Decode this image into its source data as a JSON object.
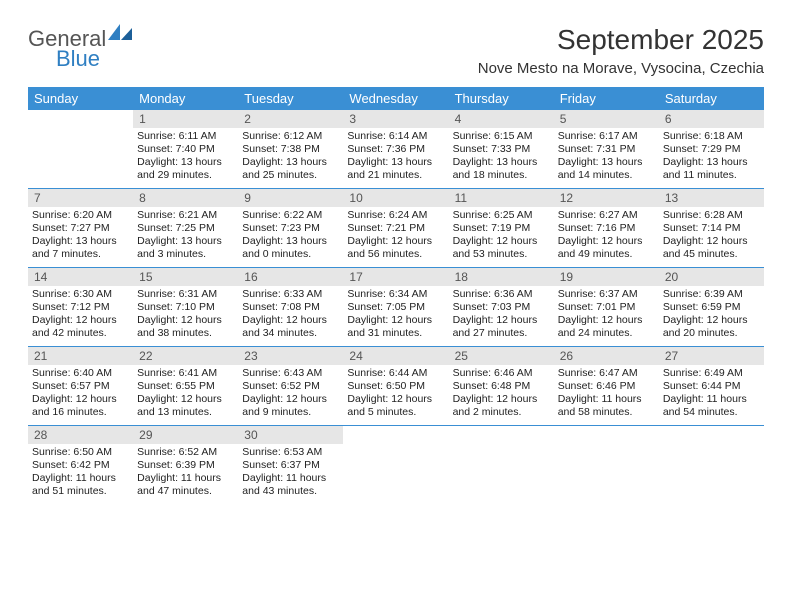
{
  "logo": {
    "text1": "General",
    "text2": "Blue"
  },
  "title": "September 2025",
  "location": "Nove Mesto na Morave, Vysocina, Czechia",
  "colors": {
    "header_bg": "#3a8fd4",
    "header_text": "#ffffff",
    "daynum_bg": "#e6e6e6",
    "daynum_text": "#555555",
    "body_text": "#222222",
    "row_border": "#3a8fd4",
    "logo_gray": "#555555",
    "logo_blue": "#2f7fc2",
    "page_bg": "#ffffff"
  },
  "day_names": [
    "Sunday",
    "Monday",
    "Tuesday",
    "Wednesday",
    "Thursday",
    "Friday",
    "Saturday"
  ],
  "weeks": [
    [
      {
        "n": "",
        "sr": "",
        "ss": "",
        "dl": ""
      },
      {
        "n": "1",
        "sr": "Sunrise: 6:11 AM",
        "ss": "Sunset: 7:40 PM",
        "dl": "Daylight: 13 hours and 29 minutes."
      },
      {
        "n": "2",
        "sr": "Sunrise: 6:12 AM",
        "ss": "Sunset: 7:38 PM",
        "dl": "Daylight: 13 hours and 25 minutes."
      },
      {
        "n": "3",
        "sr": "Sunrise: 6:14 AM",
        "ss": "Sunset: 7:36 PM",
        "dl": "Daylight: 13 hours and 21 minutes."
      },
      {
        "n": "4",
        "sr": "Sunrise: 6:15 AM",
        "ss": "Sunset: 7:33 PM",
        "dl": "Daylight: 13 hours and 18 minutes."
      },
      {
        "n": "5",
        "sr": "Sunrise: 6:17 AM",
        "ss": "Sunset: 7:31 PM",
        "dl": "Daylight: 13 hours and 14 minutes."
      },
      {
        "n": "6",
        "sr": "Sunrise: 6:18 AM",
        "ss": "Sunset: 7:29 PM",
        "dl": "Daylight: 13 hours and 11 minutes."
      }
    ],
    [
      {
        "n": "7",
        "sr": "Sunrise: 6:20 AM",
        "ss": "Sunset: 7:27 PM",
        "dl": "Daylight: 13 hours and 7 minutes."
      },
      {
        "n": "8",
        "sr": "Sunrise: 6:21 AM",
        "ss": "Sunset: 7:25 PM",
        "dl": "Daylight: 13 hours and 3 minutes."
      },
      {
        "n": "9",
        "sr": "Sunrise: 6:22 AM",
        "ss": "Sunset: 7:23 PM",
        "dl": "Daylight: 13 hours and 0 minutes."
      },
      {
        "n": "10",
        "sr": "Sunrise: 6:24 AM",
        "ss": "Sunset: 7:21 PM",
        "dl": "Daylight: 12 hours and 56 minutes."
      },
      {
        "n": "11",
        "sr": "Sunrise: 6:25 AM",
        "ss": "Sunset: 7:19 PM",
        "dl": "Daylight: 12 hours and 53 minutes."
      },
      {
        "n": "12",
        "sr": "Sunrise: 6:27 AM",
        "ss": "Sunset: 7:16 PM",
        "dl": "Daylight: 12 hours and 49 minutes."
      },
      {
        "n": "13",
        "sr": "Sunrise: 6:28 AM",
        "ss": "Sunset: 7:14 PM",
        "dl": "Daylight: 12 hours and 45 minutes."
      }
    ],
    [
      {
        "n": "14",
        "sr": "Sunrise: 6:30 AM",
        "ss": "Sunset: 7:12 PM",
        "dl": "Daylight: 12 hours and 42 minutes."
      },
      {
        "n": "15",
        "sr": "Sunrise: 6:31 AM",
        "ss": "Sunset: 7:10 PM",
        "dl": "Daylight: 12 hours and 38 minutes."
      },
      {
        "n": "16",
        "sr": "Sunrise: 6:33 AM",
        "ss": "Sunset: 7:08 PM",
        "dl": "Daylight: 12 hours and 34 minutes."
      },
      {
        "n": "17",
        "sr": "Sunrise: 6:34 AM",
        "ss": "Sunset: 7:05 PM",
        "dl": "Daylight: 12 hours and 31 minutes."
      },
      {
        "n": "18",
        "sr": "Sunrise: 6:36 AM",
        "ss": "Sunset: 7:03 PM",
        "dl": "Daylight: 12 hours and 27 minutes."
      },
      {
        "n": "19",
        "sr": "Sunrise: 6:37 AM",
        "ss": "Sunset: 7:01 PM",
        "dl": "Daylight: 12 hours and 24 minutes."
      },
      {
        "n": "20",
        "sr": "Sunrise: 6:39 AM",
        "ss": "Sunset: 6:59 PM",
        "dl": "Daylight: 12 hours and 20 minutes."
      }
    ],
    [
      {
        "n": "21",
        "sr": "Sunrise: 6:40 AM",
        "ss": "Sunset: 6:57 PM",
        "dl": "Daylight: 12 hours and 16 minutes."
      },
      {
        "n": "22",
        "sr": "Sunrise: 6:41 AM",
        "ss": "Sunset: 6:55 PM",
        "dl": "Daylight: 12 hours and 13 minutes."
      },
      {
        "n": "23",
        "sr": "Sunrise: 6:43 AM",
        "ss": "Sunset: 6:52 PM",
        "dl": "Daylight: 12 hours and 9 minutes."
      },
      {
        "n": "24",
        "sr": "Sunrise: 6:44 AM",
        "ss": "Sunset: 6:50 PM",
        "dl": "Daylight: 12 hours and 5 minutes."
      },
      {
        "n": "25",
        "sr": "Sunrise: 6:46 AM",
        "ss": "Sunset: 6:48 PM",
        "dl": "Daylight: 12 hours and 2 minutes."
      },
      {
        "n": "26",
        "sr": "Sunrise: 6:47 AM",
        "ss": "Sunset: 6:46 PM",
        "dl": "Daylight: 11 hours and 58 minutes."
      },
      {
        "n": "27",
        "sr": "Sunrise: 6:49 AM",
        "ss": "Sunset: 6:44 PM",
        "dl": "Daylight: 11 hours and 54 minutes."
      }
    ],
    [
      {
        "n": "28",
        "sr": "Sunrise: 6:50 AM",
        "ss": "Sunset: 6:42 PM",
        "dl": "Daylight: 11 hours and 51 minutes."
      },
      {
        "n": "29",
        "sr": "Sunrise: 6:52 AM",
        "ss": "Sunset: 6:39 PM",
        "dl": "Daylight: 11 hours and 47 minutes."
      },
      {
        "n": "30",
        "sr": "Sunrise: 6:53 AM",
        "ss": "Sunset: 6:37 PM",
        "dl": "Daylight: 11 hours and 43 minutes."
      },
      {
        "n": "",
        "sr": "",
        "ss": "",
        "dl": ""
      },
      {
        "n": "",
        "sr": "",
        "ss": "",
        "dl": ""
      },
      {
        "n": "",
        "sr": "",
        "ss": "",
        "dl": ""
      },
      {
        "n": "",
        "sr": "",
        "ss": "",
        "dl": ""
      }
    ]
  ]
}
